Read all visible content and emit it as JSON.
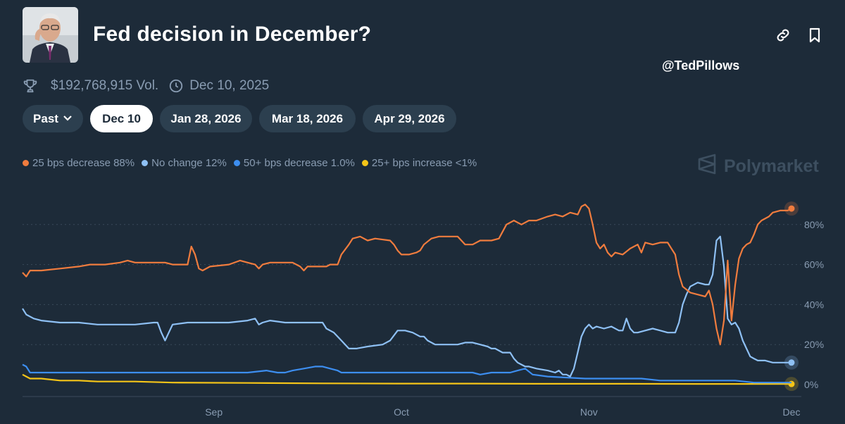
{
  "market": {
    "title": "Fed decision in December?",
    "volume": "$192,768,915 Vol.",
    "date": "Dec 10, 2025"
  },
  "watermark": "@TedPillows",
  "brand": "Polymarket",
  "tabs": [
    {
      "label": "Past",
      "active": false
    },
    {
      "label": "Dec 10",
      "active": true
    },
    {
      "label": "Jan 28, 2026",
      "active": false
    },
    {
      "label": "Mar 18, 2026",
      "active": false
    },
    {
      "label": "Apr 29, 2026",
      "active": false
    }
  ],
  "icons": {
    "link": "link-icon",
    "bookmark": "bookmark-icon",
    "trophy": "trophy-icon",
    "clock": "clock-icon",
    "chevron": "chevron-down-icon",
    "brand": "polymarket-logo-icon"
  },
  "legend": [
    {
      "label": "25 bps decrease 88%",
      "color": "#f07c3e"
    },
    {
      "label": "No change 12%",
      "color": "#8ec0f4"
    },
    {
      "label": "50+ bps decrease 1.0%",
      "color": "#3d8ef0"
    },
    {
      "label": "25+ bps increase <1%",
      "color": "#f5c518"
    }
  ],
  "chart_data": {
    "type": "line",
    "x_ticks": [
      "Sep",
      "Oct",
      "Nov",
      "Dec"
    ],
    "y_ticks": [
      "0%",
      "20%",
      "40%",
      "60%",
      "80%"
    ],
    "ylim": [
      0,
      100
    ],
    "grid": true,
    "series": [
      {
        "name": "25 bps decrease",
        "color": "#f07c3e",
        "points": [
          [
            0,
            56
          ],
          [
            1,
            54
          ],
          [
            2,
            57
          ],
          [
            5,
            57
          ],
          [
            10,
            58
          ],
          [
            15,
            59
          ],
          [
            18,
            60
          ],
          [
            22,
            60
          ],
          [
            26,
            61
          ],
          [
            28,
            62
          ],
          [
            30,
            61
          ],
          [
            35,
            61
          ],
          [
            38,
            61
          ],
          [
            40,
            60
          ],
          [
            44,
            60
          ],
          [
            45,
            69
          ],
          [
            46,
            65
          ],
          [
            47,
            58
          ],
          [
            48,
            57
          ],
          [
            50,
            59
          ],
          [
            55,
            60
          ],
          [
            58,
            62
          ],
          [
            60,
            61
          ],
          [
            62,
            60
          ],
          [
            63,
            58
          ],
          [
            64,
            60
          ],
          [
            66,
            61
          ],
          [
            69,
            61
          ],
          [
            72,
            61
          ],
          [
            74,
            59
          ],
          [
            75,
            57
          ],
          [
            76,
            59
          ],
          [
            79,
            59
          ],
          [
            81,
            59
          ],
          [
            82,
            60
          ],
          [
            84,
            60
          ],
          [
            85,
            65
          ],
          [
            87,
            70
          ],
          [
            88,
            73
          ],
          [
            90,
            74
          ],
          [
            92,
            72
          ],
          [
            94,
            73
          ],
          [
            98,
            72
          ],
          [
            99,
            70
          ],
          [
            100,
            67
          ],
          [
            101,
            65
          ],
          [
            103,
            65
          ],
          [
            105,
            66
          ],
          [
            106,
            67
          ],
          [
            107,
            70
          ],
          [
            109,
            73
          ],
          [
            111,
            74
          ],
          [
            113,
            74
          ],
          [
            116,
            74
          ],
          [
            117,
            72
          ],
          [
            118,
            70
          ],
          [
            120,
            70
          ],
          [
            122,
            72
          ],
          [
            125,
            72
          ],
          [
            127,
            73
          ],
          [
            129,
            80
          ],
          [
            131,
            82
          ],
          [
            133,
            80
          ],
          [
            135,
            82
          ],
          [
            137,
            82
          ],
          [
            140,
            84
          ],
          [
            142,
            85
          ],
          [
            144,
            84
          ],
          [
            146,
            86
          ],
          [
            148,
            85
          ],
          [
            149,
            89
          ],
          [
            150,
            90
          ],
          [
            151,
            88
          ],
          [
            152,
            80
          ],
          [
            153,
            71
          ],
          [
            154,
            68
          ],
          [
            155,
            70
          ],
          [
            156,
            66
          ],
          [
            157,
            64
          ],
          [
            158,
            66
          ],
          [
            160,
            65
          ],
          [
            162,
            68
          ],
          [
            164,
            70
          ],
          [
            165,
            66
          ],
          [
            166,
            71
          ],
          [
            168,
            70
          ],
          [
            170,
            71
          ],
          [
            172,
            71
          ],
          [
            173,
            68
          ],
          [
            174,
            65
          ],
          [
            175,
            55
          ],
          [
            176,
            49
          ],
          [
            178,
            46
          ],
          [
            180,
            45
          ],
          [
            182,
            44
          ],
          [
            183,
            47
          ],
          [
            184,
            40
          ],
          [
            185,
            28
          ],
          [
            186,
            20
          ],
          [
            187,
            32
          ],
          [
            188,
            62
          ],
          [
            189,
            32
          ],
          [
            190,
            50
          ],
          [
            191,
            63
          ],
          [
            192,
            68
          ],
          [
            193,
            70
          ],
          [
            194,
            71
          ],
          [
            195,
            75
          ],
          [
            196,
            80
          ],
          [
            197,
            82
          ],
          [
            199,
            84
          ],
          [
            200,
            86
          ],
          [
            202,
            87
          ],
          [
            204,
            87
          ],
          [
            205,
            88
          ]
        ]
      },
      {
        "name": "No change",
        "color": "#8ec0f4",
        "points": [
          [
            0,
            38
          ],
          [
            1,
            35
          ],
          [
            3,
            33
          ],
          [
            5,
            32
          ],
          [
            10,
            31
          ],
          [
            15,
            31
          ],
          [
            20,
            30
          ],
          [
            25,
            30
          ],
          [
            30,
            30
          ],
          [
            35,
            31
          ],
          [
            36,
            31
          ],
          [
            37,
            26
          ],
          [
            38,
            22
          ],
          [
            39,
            26
          ],
          [
            40,
            30
          ],
          [
            44,
            31
          ],
          [
            48,
            31
          ],
          [
            50,
            31
          ],
          [
            55,
            31
          ],
          [
            60,
            32
          ],
          [
            62,
            33
          ],
          [
            63,
            30
          ],
          [
            64,
            31
          ],
          [
            66,
            32
          ],
          [
            70,
            31
          ],
          [
            75,
            31
          ],
          [
            80,
            31
          ],
          [
            81,
            28
          ],
          [
            83,
            26
          ],
          [
            85,
            22
          ],
          [
            87,
            18
          ],
          [
            89,
            18
          ],
          [
            92,
            19
          ],
          [
            96,
            20
          ],
          [
            98,
            22
          ],
          [
            100,
            27
          ],
          [
            102,
            27
          ],
          [
            104,
            26
          ],
          [
            106,
            24
          ],
          [
            107,
            24
          ],
          [
            108,
            22
          ],
          [
            110,
            20
          ],
          [
            112,
            20
          ],
          [
            116,
            20
          ],
          [
            118,
            21
          ],
          [
            120,
            21
          ],
          [
            122,
            20
          ],
          [
            124,
            19
          ],
          [
            125,
            18
          ],
          [
            126,
            18
          ],
          [
            128,
            16
          ],
          [
            130,
            16
          ],
          [
            131,
            13
          ],
          [
            132,
            11
          ],
          [
            133,
            10
          ],
          [
            134,
            9
          ],
          [
            135,
            9
          ],
          [
            137,
            8
          ],
          [
            140,
            7
          ],
          [
            142,
            6
          ],
          [
            143,
            7
          ],
          [
            144,
            5
          ],
          [
            145,
            5
          ],
          [
            146,
            4
          ],
          [
            147,
            8
          ],
          [
            148,
            16
          ],
          [
            149,
            24
          ],
          [
            150,
            28
          ],
          [
            151,
            30
          ],
          [
            152,
            28
          ],
          [
            153,
            29
          ],
          [
            155,
            28
          ],
          [
            157,
            29
          ],
          [
            159,
            27
          ],
          [
            160,
            27
          ],
          [
            161,
            33
          ],
          [
            162,
            28
          ],
          [
            163,
            26
          ],
          [
            164,
            26
          ],
          [
            166,
            27
          ],
          [
            168,
            28
          ],
          [
            170,
            27
          ],
          [
            172,
            26
          ],
          [
            174,
            26
          ],
          [
            175,
            31
          ],
          [
            176,
            40
          ],
          [
            177,
            45
          ],
          [
            178,
            49
          ],
          [
            180,
            51
          ],
          [
            182,
            50
          ],
          [
            183,
            50
          ],
          [
            184,
            55
          ],
          [
            185,
            72
          ],
          [
            186,
            74
          ],
          [
            187,
            59
          ],
          [
            188,
            33
          ],
          [
            189,
            30
          ],
          [
            190,
            31
          ],
          [
            191,
            28
          ],
          [
            192,
            22
          ],
          [
            193,
            18
          ],
          [
            194,
            14
          ],
          [
            195,
            13
          ],
          [
            196,
            12
          ],
          [
            198,
            12
          ],
          [
            200,
            11
          ],
          [
            202,
            11
          ],
          [
            205,
            11
          ]
        ]
      },
      {
        "name": "50+ bps decrease",
        "color": "#3d8ef0",
        "points": [
          [
            0,
            10
          ],
          [
            1,
            9
          ],
          [
            2,
            6
          ],
          [
            10,
            6
          ],
          [
            20,
            6
          ],
          [
            30,
            6
          ],
          [
            40,
            6
          ],
          [
            50,
            6
          ],
          [
            60,
            6
          ],
          [
            65,
            7
          ],
          [
            68,
            6
          ],
          [
            70,
            6
          ],
          [
            72,
            7
          ],
          [
            75,
            8
          ],
          [
            78,
            9
          ],
          [
            80,
            9
          ],
          [
            82,
            8
          ],
          [
            84,
            7
          ],
          [
            85,
            6
          ],
          [
            90,
            6
          ],
          [
            95,
            6
          ],
          [
            100,
            6
          ],
          [
            105,
            6
          ],
          [
            108,
            6
          ],
          [
            110,
            6
          ],
          [
            115,
            6
          ],
          [
            120,
            6
          ],
          [
            122,
            5
          ],
          [
            125,
            6
          ],
          [
            130,
            6
          ],
          [
            132,
            7
          ],
          [
            134,
            8
          ],
          [
            136,
            5
          ],
          [
            140,
            4
          ],
          [
            150,
            3
          ],
          [
            155,
            3
          ],
          [
            160,
            3
          ],
          [
            165,
            3
          ],
          [
            170,
            2
          ],
          [
            175,
            2
          ],
          [
            180,
            2
          ],
          [
            185,
            2
          ],
          [
            190,
            2
          ],
          [
            195,
            1
          ],
          [
            200,
            1
          ],
          [
            205,
            1
          ]
        ]
      },
      {
        "name": "25+ bps increase",
        "color": "#f5c518",
        "points": [
          [
            0,
            5
          ],
          [
            1,
            4
          ],
          [
            2,
            3
          ],
          [
            5,
            3
          ],
          [
            10,
            2
          ],
          [
            15,
            2
          ],
          [
            20,
            1.5
          ],
          [
            30,
            1.5
          ],
          [
            40,
            1
          ],
          [
            60,
            0.8
          ],
          [
            80,
            0.6
          ],
          [
            100,
            0.5
          ],
          [
            120,
            0.5
          ],
          [
            140,
            0.4
          ],
          [
            160,
            0.4
          ],
          [
            180,
            0.3
          ],
          [
            205,
            0.3
          ]
        ]
      }
    ]
  }
}
